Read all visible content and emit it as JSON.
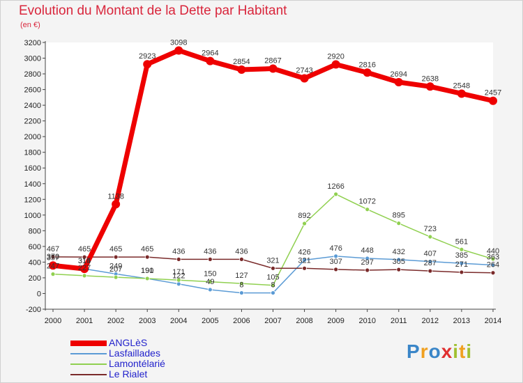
{
  "chart_data": {
    "type": "line",
    "title": "Evolution du Montant de la Dette par Habitant",
    "subtitle": "(en €)",
    "categories": [
      "2000",
      "2001",
      "2002",
      "2003",
      "2004",
      "2005",
      "2006",
      "2007",
      "2008",
      "2009",
      "2010",
      "2011",
      "2012",
      "2013",
      "2014"
    ],
    "ylim": [
      -200,
      3200
    ],
    "yticks": [
      -200,
      0,
      200,
      400,
      600,
      800,
      1000,
      1200,
      1400,
      1600,
      1800,
      2000,
      2200,
      2400,
      2600,
      2800,
      3000,
      3200
    ],
    "grid": false,
    "legend_position": "bottom-left",
    "series": [
      {
        "name": "ANGLèS",
        "color": "#ee0000",
        "values": [
          357,
          314,
          1138,
          2923,
          3098,
          2964,
          2854,
          2867,
          2743,
          2920,
          2816,
          2694,
          2638,
          2548,
          2457
        ]
      },
      {
        "name": "Lasfaillades",
        "color": "#5b9bd5",
        "values": [
          370,
          315,
          249,
          190,
          122,
          49,
          8,
          8,
          426,
          476,
          448,
          432,
          407,
          385,
          363
        ]
      },
      {
        "name": "Lamontélarié",
        "color": "#90d050",
        "values": [
          247,
          227,
          207,
          191,
          171,
          150,
          127,
          105,
          892,
          1266,
          1072,
          895,
          723,
          561,
          440
        ]
      },
      {
        "name": "Le Rialet",
        "color": "#7a2a2a",
        "values": [
          467,
          465,
          465,
          465,
          436,
          436,
          436,
          321,
          321,
          307,
          297,
          305,
          287,
          271,
          264
        ]
      }
    ]
  },
  "logo": {
    "letters": [
      "P",
      "r",
      "o",
      "x",
      "i",
      "t",
      "i"
    ],
    "colors": [
      "#3a86c8",
      "#f0a020",
      "#3a86c8",
      "#e03030",
      "#a0c030",
      "#f0a020",
      "#a0c030"
    ]
  }
}
